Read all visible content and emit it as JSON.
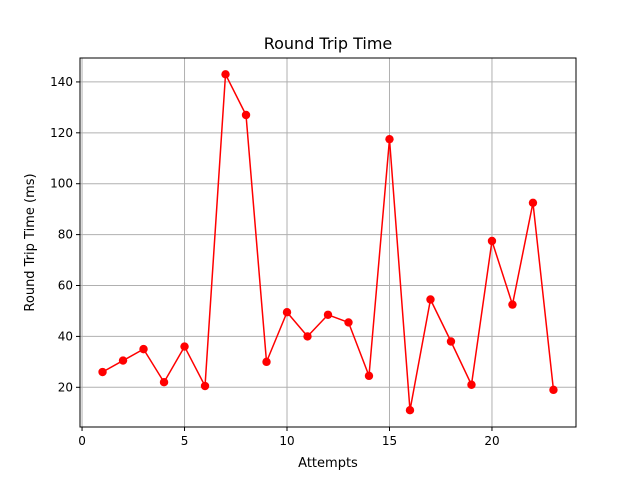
{
  "chart_data": {
    "type": "line",
    "title": "Round Trip Time",
    "xlabel": "Attempts",
    "ylabel": "Round Trip Time (ms)",
    "xlim": [
      -0.1,
      24.1
    ],
    "ylim": [
      4.4,
      149.4
    ],
    "xticks": [
      0,
      5,
      10,
      15,
      20
    ],
    "yticks": [
      20,
      40,
      60,
      80,
      100,
      120,
      140
    ],
    "grid": true,
    "series": [
      {
        "color": "#ff0000",
        "marker": "circle",
        "x": [
          1,
          2,
          3,
          4,
          5,
          6,
          7,
          8,
          9,
          10,
          11,
          12,
          13,
          14,
          15,
          16,
          17,
          18,
          19,
          20,
          21,
          22,
          23
        ],
        "values": [
          26,
          30.5,
          35,
          22,
          36,
          20.5,
          143,
          127,
          30,
          49.5,
          40,
          48.5,
          45.5,
          24.5,
          117.5,
          11,
          54.5,
          38,
          21,
          77.5,
          52.5,
          92.5,
          19
        ]
      }
    ]
  }
}
